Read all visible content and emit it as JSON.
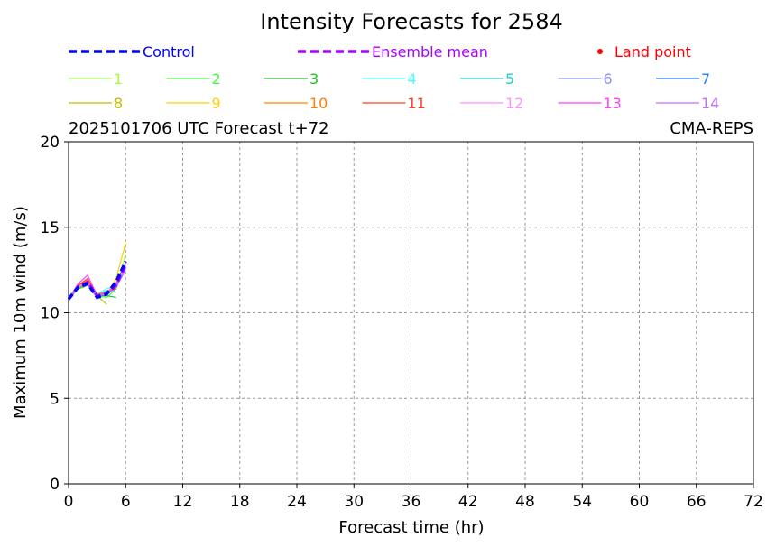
{
  "chart_data": {
    "type": "line",
    "title": "Intensity Forecasts for 2584",
    "subtitle_left": "2025101706 UTC Forecast t+72",
    "subtitle_right": "CMA-REPS",
    "xlabel": "Forecast time (hr)",
    "ylabel": "Maximum 10m wind (m/s)",
    "xlim": [
      0,
      72
    ],
    "ylim": [
      0,
      20
    ],
    "xticks": [
      0,
      6,
      12,
      18,
      24,
      30,
      36,
      42,
      48,
      54,
      60,
      66,
      72
    ],
    "yticks": [
      0,
      5,
      10,
      15,
      20
    ],
    "grid": true,
    "x": [
      0,
      1,
      2,
      3,
      4,
      5,
      6
    ],
    "control": {
      "name": "Control",
      "color": "#0000ff",
      "values": [
        10.8,
        11.5,
        11.7,
        10.9,
        11.1,
        11.8,
        13.0
      ]
    },
    "mean": {
      "name": "Ensemble mean",
      "color": "#aa00ff",
      "values": [
        10.8,
        11.5,
        11.8,
        11.0,
        11.1,
        11.6,
        12.8
      ]
    },
    "land_point": {
      "name": "Land point",
      "color": "#ff0000"
    },
    "members": [
      {
        "name": "1",
        "color": "#a0ff40",
        "values": [
          10.8,
          11.4,
          11.6,
          11.0,
          11.2,
          11.5,
          13.4
        ]
      },
      {
        "name": "2",
        "color": "#40ff40",
        "values": [
          10.8,
          11.5,
          11.7,
          11.0,
          10.9,
          11.4,
          12.9
        ]
      },
      {
        "name": "3",
        "color": "#20c020",
        "values": [
          10.8,
          11.4,
          11.6,
          11.0,
          11.0,
          10.9,
          null
        ]
      },
      {
        "name": "4",
        "color": "#40ffff",
        "values": [
          10.8,
          11.5,
          11.8,
          11.1,
          11.4,
          11.6,
          12.8
        ]
      },
      {
        "name": "5",
        "color": "#20d0d0",
        "values": [
          10.8,
          11.5,
          11.9,
          11.0,
          11.3,
          11.2,
          null
        ]
      },
      {
        "name": "6",
        "color": "#9090ff",
        "values": [
          10.8,
          11.6,
          11.7,
          11.0,
          11.2,
          11.6,
          12.6
        ]
      },
      {
        "name": "7",
        "color": "#2080ff",
        "values": [
          10.8,
          11.5,
          11.6,
          10.9,
          11.1,
          11.7,
          12.9
        ]
      },
      {
        "name": "8",
        "color": "#c0c000",
        "values": [
          10.8,
          11.5,
          11.6,
          11.0,
          10.5,
          null,
          null
        ]
      },
      {
        "name": "9",
        "color": "#ffd000",
        "values": [
          10.8,
          11.6,
          11.8,
          11.0,
          11.1,
          12.0,
          14.1
        ]
      },
      {
        "name": "10",
        "color": "#ff8000",
        "values": [
          10.8,
          11.6,
          11.9,
          11.1,
          11.2,
          11.5,
          null
        ]
      },
      {
        "name": "11",
        "color": "#ff4020",
        "values": [
          10.8,
          11.6,
          12.0,
          11.0,
          11.2,
          11.4,
          null
        ]
      },
      {
        "name": "12",
        "color": "#ff90ff",
        "values": [
          10.8,
          11.5,
          11.8,
          11.0,
          11.1,
          11.8,
          12.7
        ]
      },
      {
        "name": "13",
        "color": "#ff40ff",
        "values": [
          10.8,
          11.7,
          12.2,
          11.0,
          11.2,
          11.6,
          12.9
        ]
      },
      {
        "name": "14",
        "color": "#c070ff",
        "values": [
          10.8,
          11.5,
          11.7,
          11.0,
          11.1,
          11.5,
          12.5
        ]
      }
    ]
  }
}
